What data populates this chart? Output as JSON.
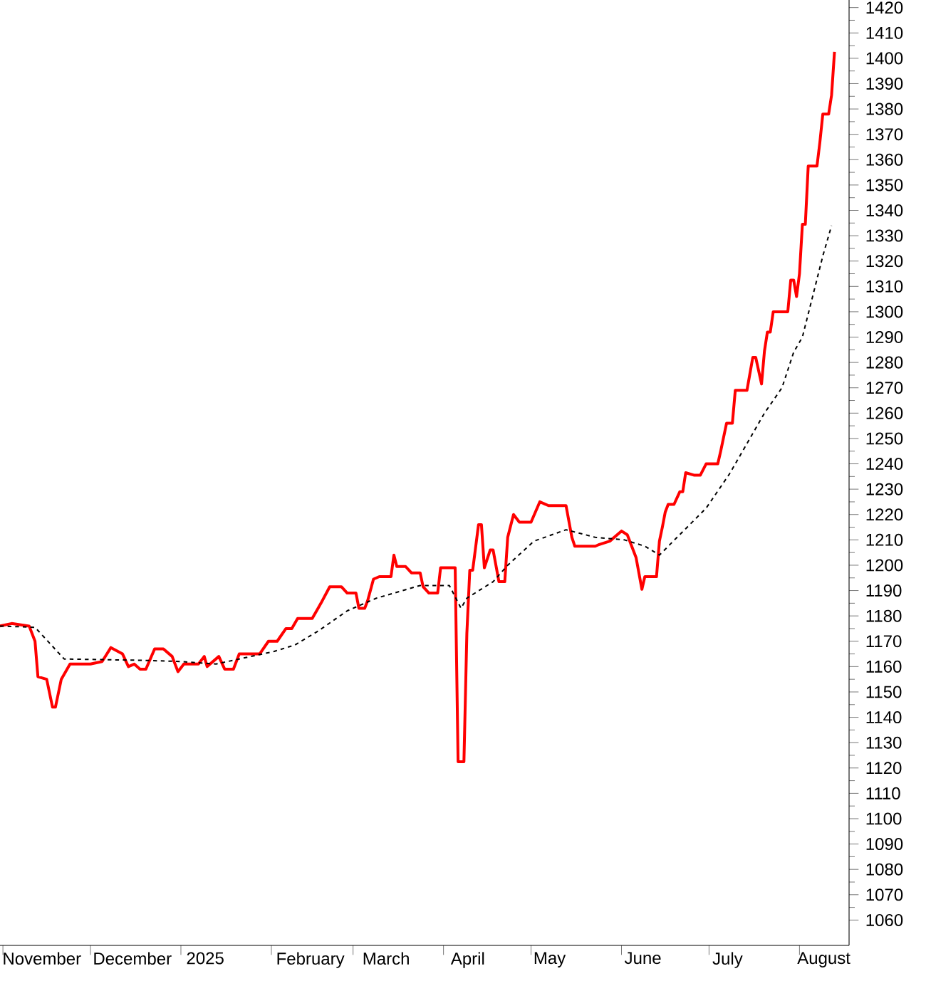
{
  "chart_data": {
    "type": "line",
    "xlim": [
      "2024-10-31",
      "2025-08-18"
    ],
    "ylim": [
      1050,
      1423
    ],
    "xticks": [
      {
        "value": "2024-11-01",
        "label": null
      },
      {
        "value": "2024-12-01",
        "label": null
      },
      {
        "value": "2025-01-01",
        "label": null
      },
      {
        "value": "2025-02-01",
        "label": null
      },
      {
        "value": "2025-03-01",
        "label": null
      },
      {
        "value": "2025-04-01",
        "label": null
      },
      {
        "value": "2025-05-01",
        "label": null
      },
      {
        "value": "2025-06-01",
        "label": null
      },
      {
        "value": "2025-07-01",
        "label": null
      },
      {
        "value": "2025-08-01",
        "label": null
      },
      {
        "value": "2024-11-15",
        "label": "November"
      },
      {
        "value": "2024-12-16",
        "label": "December"
      },
      {
        "value": "2025-01-10",
        "label": "2025"
      },
      {
        "value": "2025-02-15",
        "label": "February"
      },
      {
        "value": "2025-03-13",
        "label": "March"
      },
      {
        "value": "2025-04-10",
        "label": "April"
      },
      {
        "value": "2025-05-08",
        "label": "May"
      },
      {
        "value": "2025-06-09",
        "label": "June"
      },
      {
        "value": "2025-07-08",
        "label": "July"
      },
      {
        "value": "2025-08-10",
        "label": "August"
      }
    ],
    "yticks": [
      1060,
      1070,
      1080,
      1090,
      1100,
      1110,
      1120,
      1130,
      1140,
      1150,
      1160,
      1170,
      1180,
      1190,
      1200,
      1210,
      1220,
      1230,
      1240,
      1250,
      1260,
      1270,
      1280,
      1290,
      1300,
      1310,
      1320,
      1330,
      1340,
      1350,
      1360,
      1370,
      1380,
      1390,
      1400,
      1410,
      1420
    ],
    "series": [
      {
        "color": "#ff0000",
        "line_style": "solid",
        "x": [
          "2024-10-31",
          "2024-11-04",
          "2024-11-10",
          "2024-11-12",
          "2024-11-13",
          "2024-11-16",
          "2024-11-18",
          "2024-11-19",
          "2024-11-21",
          "2024-11-24",
          "2024-12-01",
          "2024-12-05",
          "2024-12-08",
          "2024-12-12",
          "2024-12-14",
          "2024-12-16",
          "2024-12-18",
          "2024-12-20",
          "2024-12-23",
          "2024-12-26",
          "2024-12-29",
          "2024-12-31",
          "2025-01-02",
          "2025-01-07",
          "2025-01-09",
          "2025-01-10",
          "2025-01-14",
          "2025-01-16",
          "2025-01-19",
          "2025-01-21",
          "2025-01-28",
          "2025-01-31",
          "2025-02-03",
          "2025-02-06",
          "2025-02-08",
          "2025-02-10",
          "2025-02-15",
          "2025-02-17",
          "2025-02-18",
          "2025-02-21",
          "2025-02-25",
          "2025-02-27",
          "2025-03-02",
          "2025-03-03",
          "2025-03-05",
          "2025-03-06",
          "2025-03-08",
          "2025-03-10",
          "2025-03-14",
          "2025-03-15",
          "2025-03-16",
          "2025-03-19",
          "2025-03-21",
          "2025-03-24",
          "2025-03-25",
          "2025-03-27",
          "2025-03-30",
          "2025-03-31",
          "2025-04-05",
          "2025-04-06",
          "2025-04-08",
          "2025-04-09",
          "2025-04-10",
          "2025-04-11",
          "2025-04-13",
          "2025-04-14",
          "2025-04-15",
          "2025-04-17",
          "2025-04-18",
          "2025-04-20",
          "2025-04-22",
          "2025-04-23",
          "2025-04-25",
          "2025-04-27",
          "2025-05-01",
          "2025-05-04",
          "2025-05-07",
          "2025-05-13",
          "2025-05-15",
          "2025-05-16",
          "2025-05-23",
          "2025-05-24",
          "2025-05-28",
          "2025-06-01",
          "2025-06-03",
          "2025-06-06",
          "2025-06-08",
          "2025-06-09",
          "2025-06-13",
          "2025-06-14",
          "2025-06-15",
          "2025-06-16",
          "2025-06-17",
          "2025-06-19",
          "2025-06-21",
          "2025-06-22",
          "2025-06-23",
          "2025-06-26",
          "2025-06-28",
          "2025-06-30",
          "2025-07-04",
          "2025-07-05",
          "2025-07-07",
          "2025-07-09",
          "2025-07-10",
          "2025-07-14",
          "2025-07-16",
          "2025-07-17",
          "2025-07-19",
          "2025-07-20",
          "2025-07-21",
          "2025-07-22",
          "2025-07-23",
          "2025-07-28",
          "2025-07-29",
          "2025-07-30",
          "2025-07-31",
          "2025-08-01",
          "2025-08-02",
          "2025-08-03",
          "2025-08-04",
          "2025-08-07",
          "2025-08-08",
          "2025-08-09",
          "2025-08-11",
          "2025-08-12",
          "2025-08-13"
        ],
        "values": [
          1176,
          1177,
          1176,
          1170,
          1156,
          1155,
          1144,
          1144,
          1155,
          1161,
          1161,
          1162,
          1167.5,
          1165,
          1160,
          1161,
          1159,
          1159,
          1167,
          1167,
          1164,
          1158,
          1161,
          1161,
          1164,
          1160,
          1164,
          1159,
          1159,
          1165,
          1165,
          1170,
          1170,
          1175,
          1175,
          1179,
          1179,
          1183,
          1185,
          1191.5,
          1191.5,
          1189,
          1189,
          1183,
          1183,
          1186,
          1194.5,
          1195.5,
          1195.5,
          1204,
          1199.5,
          1199.5,
          1197,
          1197,
          1191.5,
          1189,
          1189,
          1199,
          1199,
          1122.5,
          1122.5,
          1173,
          1198,
          1198,
          1216,
          1216,
          1199,
          1206,
          1206,
          1193.5,
          1193.5,
          1211,
          1220,
          1217,
          1217,
          1225,
          1223.5,
          1223.5,
          1211,
          1207.5,
          1207.5,
          1208,
          1209.5,
          1213.5,
          1212,
          1203,
          1190.5,
          1195.5,
          1195.5,
          1209.5,
          1215,
          1221,
          1224,
          1224,
          1229,
          1229,
          1236.5,
          1235.5,
          1235.5,
          1240,
          1240,
          1245,
          1256,
          1256,
          1269,
          1269,
          1282,
          1282,
          1271.5,
          1284.5,
          1292,
          1292,
          1300,
          1300,
          1312.5,
          1312.5,
          1306,
          1315,
          1334.5,
          1334.5,
          1357.5,
          1357.5,
          1367,
          1378,
          1378,
          1385.5,
          1402.5
        ]
      },
      {
        "color": "#000000",
        "line_style": "dashed",
        "x": [
          "2024-10-31",
          "2024-11-12",
          "2024-11-22",
          "2024-12-18",
          "2025-01-01",
          "2025-01-13",
          "2025-02-02",
          "2025-02-09",
          "2025-02-17",
          "2025-02-27",
          "2025-03-09",
          "2025-03-24",
          "2025-04-03",
          "2025-04-07",
          "2025-04-09",
          "2025-04-18",
          "2025-04-23",
          "2025-05-02",
          "2025-05-13",
          "2025-05-23",
          "2025-06-02",
          "2025-06-09",
          "2025-06-14",
          "2025-06-30",
          "2025-07-08",
          "2025-07-20",
          "2025-07-26",
          "2025-07-30",
          "2025-08-02",
          "2025-08-09",
          "2025-08-12"
        ],
        "values": [
          1176,
          1175.5,
          1163,
          1162.5,
          1162,
          1161,
          1166,
          1168.5,
          1174,
          1182,
          1187,
          1192,
          1192,
          1183,
          1187,
          1193.5,
          1200,
          1209.5,
          1214,
          1211,
          1210,
          1207.5,
          1204,
          1222.5,
          1236,
          1260,
          1270,
          1284,
          1290,
          1322,
          1334
        ]
      }
    ]
  }
}
